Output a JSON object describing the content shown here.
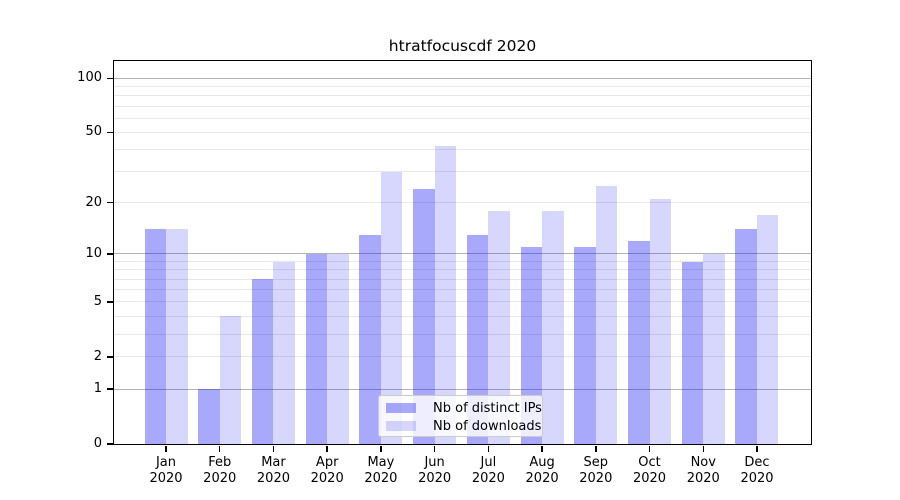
{
  "title": "htratfocuscdf 2020",
  "chart_data": {
    "type": "bar",
    "title": "htratfocuscdf 2020",
    "categories": [
      "Jan",
      "Feb",
      "Mar",
      "Apr",
      "May",
      "Jun",
      "Jul",
      "Aug",
      "Sep",
      "Oct",
      "Nov",
      "Dec"
    ],
    "category_year": "2020",
    "series": [
      {
        "name": "Nb of distinct IPs",
        "color": "rgba(8,8,245,0.35)",
        "values": [
          14,
          1,
          7,
          10,
          13,
          24,
          13,
          11,
          11,
          12,
          9,
          14
        ]
      },
      {
        "name": "Nb of downloads",
        "color": "rgba(8,8,245,0.16)",
        "values": [
          14,
          4,
          9,
          10,
          30,
          42,
          18,
          18,
          25,
          21,
          10,
          17
        ]
      }
    ],
    "yscale": "log(1+y)",
    "ylim": [
      0,
      124
    ],
    "yticks": [
      0,
      1,
      2,
      5,
      10,
      20,
      50,
      100
    ],
    "major_gridlines": [
      1,
      10,
      100
    ],
    "minor_gridlines": [
      2,
      3,
      4,
      5,
      6,
      7,
      8,
      9,
      20,
      30,
      40,
      50,
      60,
      70,
      80,
      90
    ],
    "legend": {
      "position": "lower center"
    },
    "colors": {
      "grid_major": "#b3b3b3",
      "grid_minor": "#e7e7e7",
      "axis": "#000000",
      "text": "#000000",
      "legend_border": "#cccccc",
      "background": "#ffffff"
    }
  }
}
